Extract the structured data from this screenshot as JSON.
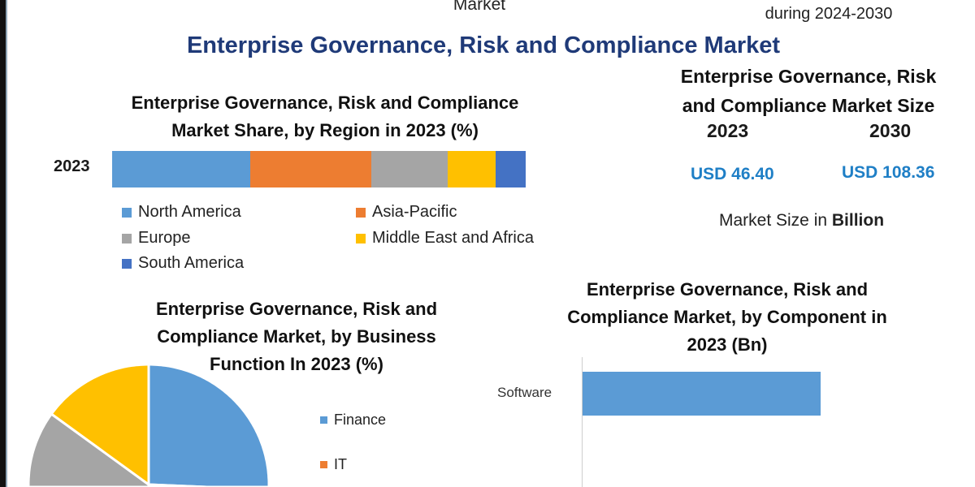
{
  "header": {
    "top_fragment_center": "Market",
    "top_fragment_right": "during 2024-2030",
    "title": "Enterprise Governance, Risk and Compliance Market"
  },
  "market_size": {
    "title_line1": "Enterprise Governance, Risk",
    "title_line2": "and Compliance Market Size",
    "year_a": "2023",
    "year_b": "2030",
    "value_a": "USD 46.40",
    "value_b": "USD 108.36",
    "unit_prefix": "Market Size in ",
    "unit_bold": "Billion",
    "value_color": "#1f7fc6"
  },
  "chart_data": [
    {
      "type": "bar",
      "orientation": "horizontal-stacked",
      "title_line1": "Enterprise Governance, Risk and Compliance",
      "title_line2": "Market Share, by Region in 2023 (%)",
      "categories": [
        "2023"
      ],
      "series": [
        {
          "name": "North America",
          "values": [
            33.4
          ],
          "color": "#5b9bd5"
        },
        {
          "name": "Asia-Pacific",
          "values": [
            29.3
          ],
          "color": "#ed7d31"
        },
        {
          "name": "Europe",
          "values": [
            18.5
          ],
          "color": "#a5a5a5"
        },
        {
          "name": "Middle East and Africa",
          "values": [
            11.6
          ],
          "color": "#ffc000"
        },
        {
          "name": "South America",
          "values": [
            7.2
          ],
          "color": "#4472c4"
        }
      ],
      "legend": "bottom"
    },
    {
      "type": "pie",
      "title_line1": "Enterprise Governance, Risk and",
      "title_line2": "Compliance Market, by Business",
      "title_line3": "Function In 2023 (%)",
      "slices": [
        {
          "name": "Finance",
          "value": 42,
          "color": "#5b9bd5"
        },
        {
          "name": "IT",
          "value": 8,
          "color": "#ed7d31"
        },
        {
          "value": 35,
          "color": "#a5a5a5"
        },
        {
          "value": 15,
          "color": "#ffc000"
        }
      ],
      "legend": "right"
    },
    {
      "type": "bar",
      "orientation": "horizontal",
      "title_line1": "Enterprise Governance, Risk and",
      "title_line2": "Compliance Market, by Component in",
      "title_line3": "2023 (Bn)",
      "categories": [
        "Software"
      ],
      "values": [
        29
      ],
      "xlim": [
        0,
        46
      ],
      "color": "#5b9bd5"
    }
  ]
}
